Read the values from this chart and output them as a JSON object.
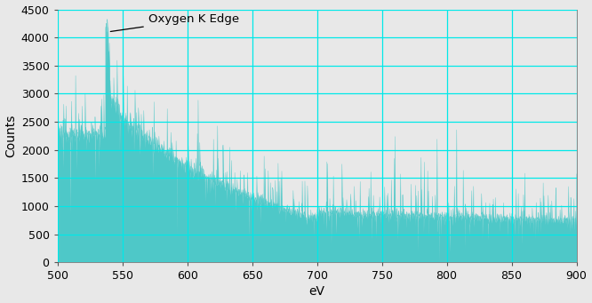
{
  "title": "",
  "xlabel": "eV",
  "ylabel": "Counts",
  "xlim": [
    500,
    900
  ],
  "ylim": [
    0,
    4500
  ],
  "xticks": [
    500,
    550,
    600,
    650,
    700,
    750,
    800,
    850,
    900
  ],
  "yticks": [
    0,
    500,
    1000,
    1500,
    2000,
    2500,
    3000,
    3500,
    4000,
    4500
  ],
  "fill_color": "#4ec8c8",
  "line_color": "#4ec8c8",
  "bg_color": "#e8e8e8",
  "grid_color": "#00e8e8",
  "annotation_text": "Oxygen K Edge",
  "peak_ev": 538,
  "seed": 12345
}
